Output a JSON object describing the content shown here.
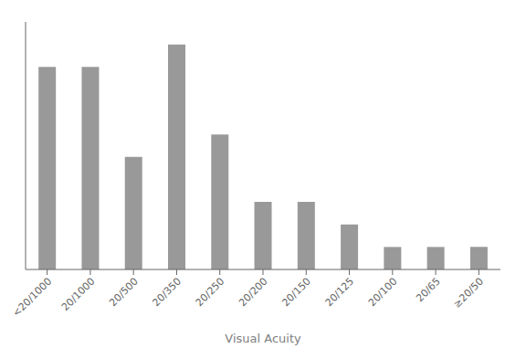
{
  "chart_data": {
    "type": "bar",
    "xlabel": "Visual Acuity",
    "categories": [
      "<20/1000",
      "20/1000",
      "20/500",
      "20/350",
      "20/250",
      "20/200",
      "20/150",
      "20/125",
      "20/100",
      "20/65",
      "≥20/50"
    ],
    "values": [
      9,
      9,
      5,
      10,
      6,
      3,
      3,
      2,
      1,
      1,
      1
    ],
    "color": "#999999",
    "ylim": [
      0,
      11
    ],
    "grid": false,
    "tick_labels": "x"
  }
}
